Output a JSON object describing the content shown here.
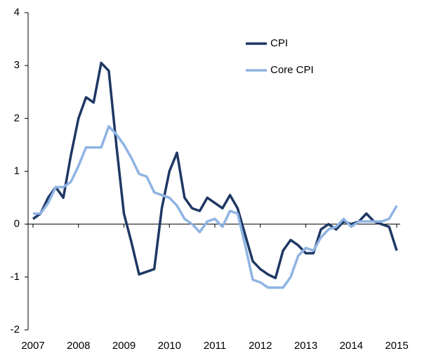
{
  "chart_data": {
    "type": "line",
    "x": [
      2007,
      2007.167,
      2007.333,
      2007.5,
      2007.667,
      2007.833,
      2008,
      2008.167,
      2008.333,
      2008.5,
      2008.667,
      2008.833,
      2009,
      2009.167,
      2009.333,
      2009.5,
      2009.667,
      2009.833,
      2010,
      2010.167,
      2010.333,
      2010.5,
      2010.667,
      2010.833,
      2011,
      2011.167,
      2011.333,
      2011.5,
      2011.667,
      2011.833,
      2012,
      2012.167,
      2012.333,
      2012.5,
      2012.667,
      2012.833,
      2013,
      2013.167,
      2013.333,
      2013.5,
      2013.667,
      2013.833,
      2014,
      2014.167,
      2014.333,
      2014.5,
      2014.667,
      2014.833,
      2015
    ],
    "series": [
      {
        "name": "CPI",
        "color": "#1f3864",
        "values": [
          0.1,
          0.2,
          0.5,
          0.7,
          0.5,
          1.3,
          2.0,
          2.4,
          2.3,
          3.05,
          2.9,
          1.5,
          0.2,
          -0.35,
          -0.95,
          -0.9,
          -0.85,
          0.3,
          1.0,
          1.35,
          0.5,
          0.3,
          0.25,
          0.5,
          0.4,
          0.3,
          0.55,
          0.3,
          -0.2,
          -0.7,
          -0.85,
          -0.95,
          -1.02,
          -0.5,
          -0.3,
          -0.4,
          -0.55,
          -0.55,
          -0.1,
          0.0,
          -0.1,
          0.05,
          0.0,
          0.05,
          0.2,
          0.05,
          0.0,
          -0.05,
          -0.5
        ]
      },
      {
        "name": "Core CPI",
        "color": "#8eb4e3",
        "values": [
          0.2,
          0.2,
          0.4,
          0.7,
          0.7,
          0.8,
          1.1,
          1.45,
          1.45,
          1.45,
          1.85,
          1.7,
          1.5,
          1.25,
          0.95,
          0.9,
          0.6,
          0.55,
          0.5,
          0.35,
          0.1,
          0.0,
          -0.15,
          0.05,
          0.1,
          -0.05,
          0.25,
          0.2,
          -0.4,
          -1.05,
          -1.1,
          -1.2,
          -1.2,
          -1.2,
          -1.0,
          -0.6,
          -0.45,
          -0.5,
          -0.25,
          -0.1,
          -0.05,
          0.1,
          -0.05,
          0.05,
          0.05,
          0.05,
          0.05,
          0.1,
          0.35
        ]
      }
    ],
    "xlim": [
      2007,
      2015
    ],
    "xticks": [
      2007,
      2008,
      2009,
      2010,
      2011,
      2012,
      2013,
      2014,
      2015
    ],
    "ylim": [
      -2,
      4
    ],
    "yticks": [
      -2,
      -1,
      0,
      1,
      2,
      3,
      4
    ]
  }
}
